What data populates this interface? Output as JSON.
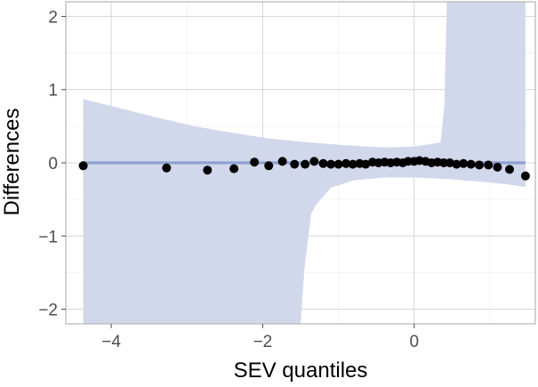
{
  "chart_data": {
    "type": "scatter",
    "title": "",
    "xlabel": "SEV quantiles",
    "ylabel": "Differences",
    "xlim": [
      -4.6,
      1.6
    ],
    "ylim": [
      -2.2,
      2.2
    ],
    "x_ticks": [
      -4,
      -2,
      0
    ],
    "x_tick_labels": [
      "−4",
      "−2",
      "0"
    ],
    "y_ticks": [
      -2,
      -1,
      0,
      1,
      2
    ],
    "y_tick_labels": [
      "−2",
      "−1",
      "0",
      "1",
      "2"
    ],
    "grid": true,
    "colors": {
      "band": "#d1d8eb",
      "reference_line": "#8ea1d0",
      "points": "#000000"
    },
    "reference_line": {
      "y": 0,
      "x_start": -4.37,
      "x_end": 1.47
    },
    "confidence_band": {
      "upper": [
        {
          "x": -4.37,
          "y": 0.87
        },
        {
          "x": -3.9,
          "y": 0.75
        },
        {
          "x": -3.4,
          "y": 0.62
        },
        {
          "x": -2.9,
          "y": 0.5
        },
        {
          "x": -2.4,
          "y": 0.41
        },
        {
          "x": -1.9,
          "y": 0.33
        },
        {
          "x": -1.4,
          "y": 0.28
        },
        {
          "x": -0.9,
          "y": 0.24
        },
        {
          "x": -0.4,
          "y": 0.21
        },
        {
          "x": 0.0,
          "y": 0.22
        },
        {
          "x": 0.35,
          "y": 0.28
        },
        {
          "x": 0.4,
          "y": 0.8
        },
        {
          "x": 0.43,
          "y": 2.2
        },
        {
          "x": 1.47,
          "y": 2.2
        }
      ],
      "lower": [
        {
          "x": 1.47,
          "y": -0.33
        },
        {
          "x": 1.2,
          "y": -0.29
        },
        {
          "x": 0.8,
          "y": -0.25
        },
        {
          "x": 0.4,
          "y": -0.22
        },
        {
          "x": 0.0,
          "y": -0.2
        },
        {
          "x": -0.4,
          "y": -0.2
        },
        {
          "x": -0.8,
          "y": -0.24
        },
        {
          "x": -1.1,
          "y": -0.34
        },
        {
          "x": -1.3,
          "y": -0.58
        },
        {
          "x": -1.36,
          "y": -0.7
        },
        {
          "x": -1.45,
          "y": -1.45
        },
        {
          "x": -1.5,
          "y": -2.2
        },
        {
          "x": -4.37,
          "y": -2.2
        }
      ]
    },
    "points": [
      {
        "x": -4.37,
        "y": -0.04
      },
      {
        "x": -3.27,
        "y": -0.07
      },
      {
        "x": -2.73,
        "y": -0.1
      },
      {
        "x": -2.38,
        "y": -0.08
      },
      {
        "x": -2.11,
        "y": 0.01
      },
      {
        "x": -1.92,
        "y": -0.04
      },
      {
        "x": -1.74,
        "y": 0.02
      },
      {
        "x": -1.58,
        "y": -0.02
      },
      {
        "x": -1.44,
        "y": -0.02
      },
      {
        "x": -1.32,
        "y": 0.02
      },
      {
        "x": -1.2,
        "y": -0.01
      },
      {
        "x": -1.1,
        "y": -0.02
      },
      {
        "x": -1.0,
        "y": -0.02
      },
      {
        "x": -0.9,
        "y": -0.01
      },
      {
        "x": -0.81,
        "y": -0.02
      },
      {
        "x": -0.72,
        "y": -0.01
      },
      {
        "x": -0.64,
        "y": -0.02
      },
      {
        "x": -0.55,
        "y": 0.01
      },
      {
        "x": -0.47,
        "y": 0.0
      },
      {
        "x": -0.39,
        "y": 0.01
      },
      {
        "x": -0.31,
        "y": 0.0
      },
      {
        "x": -0.23,
        "y": 0.01
      },
      {
        "x": -0.15,
        "y": 0.0
      },
      {
        "x": -0.08,
        "y": 0.02
      },
      {
        "x": 0.0,
        "y": 0.02
      },
      {
        "x": 0.07,
        "y": 0.03
      },
      {
        "x": 0.15,
        "y": 0.02
      },
      {
        "x": 0.23,
        "y": 0.0
      },
      {
        "x": 0.31,
        "y": 0.01
      },
      {
        "x": 0.39,
        "y": 0.0
      },
      {
        "x": 0.47,
        "y": 0.0
      },
      {
        "x": 0.56,
        "y": -0.02
      },
      {
        "x": 0.65,
        "y": -0.01
      },
      {
        "x": 0.75,
        "y": -0.02
      },
      {
        "x": 0.86,
        "y": -0.03
      },
      {
        "x": 0.98,
        "y": -0.03
      },
      {
        "x": 1.1,
        "y": -0.06
      },
      {
        "x": 1.26,
        "y": -0.09
      },
      {
        "x": 1.47,
        "y": -0.18
      }
    ]
  }
}
